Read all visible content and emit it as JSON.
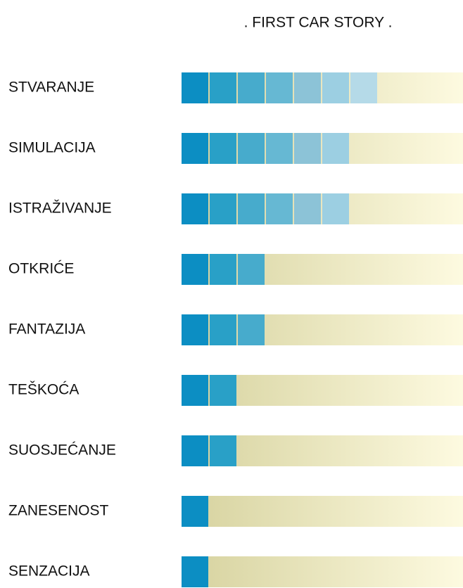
{
  "chart_data": {
    "type": "segmented-bar",
    "title": ". FIRST CAR STORY .",
    "categories": [
      "STVARANJE",
      "SIMULACIJA",
      "ISTRAŽIVANJE",
      "OTKRIĆE",
      "FANTAZIJA",
      "TEŠKOĆA",
      "SUOSJEĆANJE",
      "ZANESENOST",
      "SENZACIJA"
    ],
    "values": [
      7,
      6,
      6,
      3,
      3,
      2,
      2,
      1,
      1
    ],
    "segment_colors": [
      "#0c8ec3",
      "#29a0c7",
      "#47abcc",
      "#66b8d3",
      "#8cc3d7",
      "#9ccfe2",
      "#b5dae8"
    ],
    "track_colors": [
      "#d6d29e",
      "#fdfae0"
    ]
  }
}
